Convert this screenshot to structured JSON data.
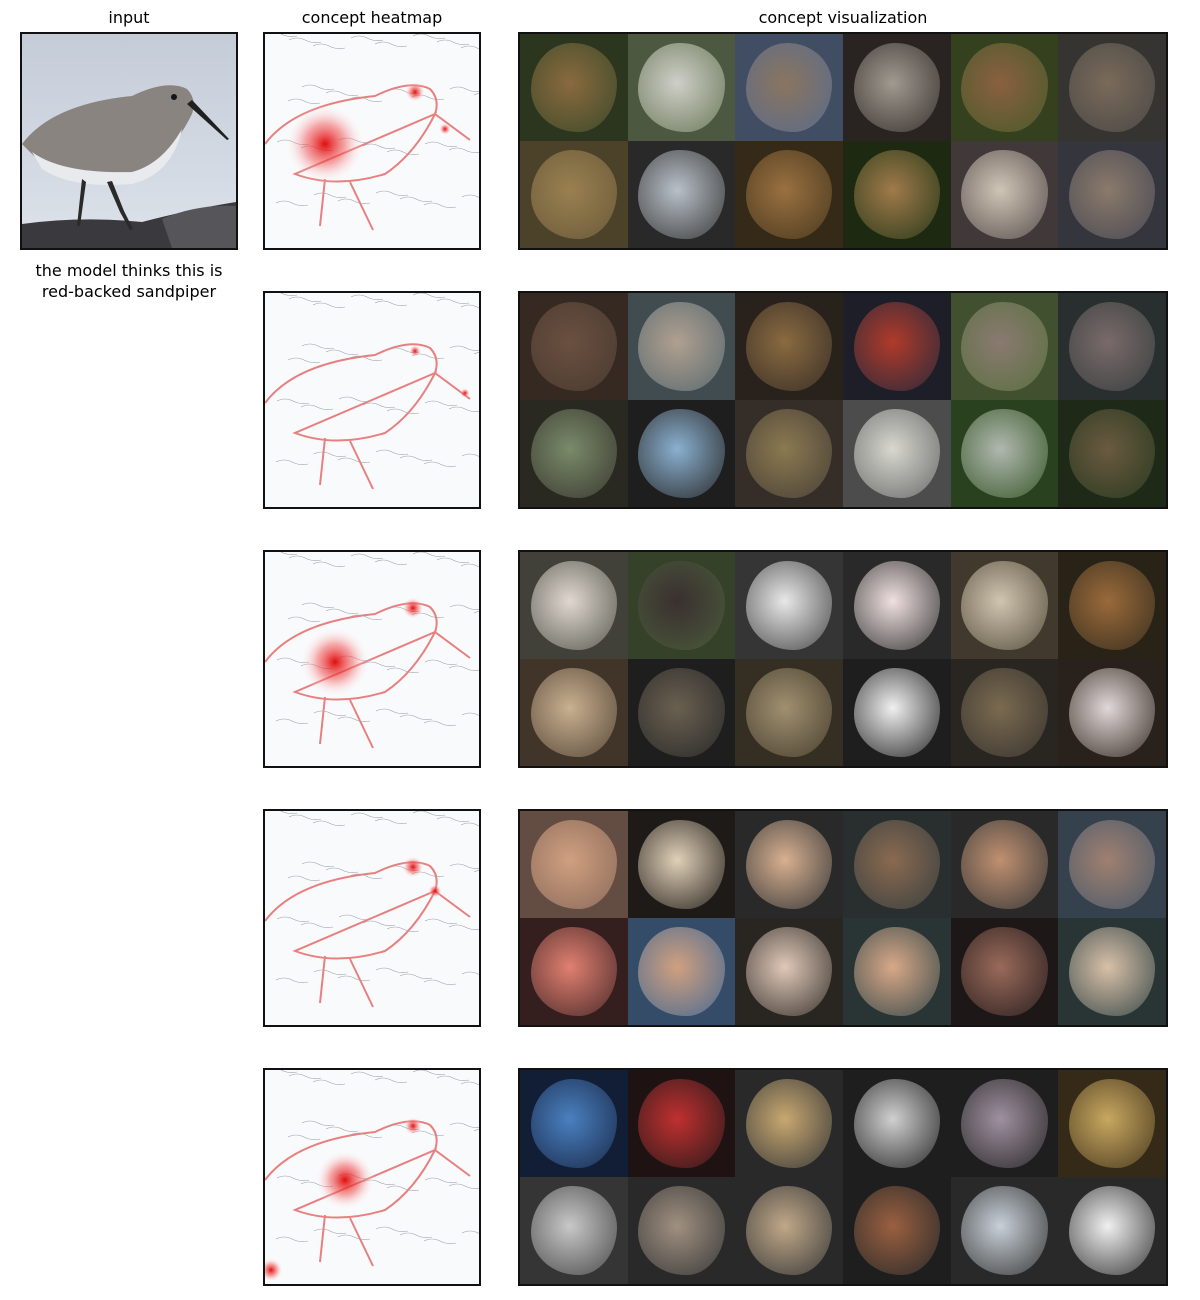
{
  "headers": {
    "input": "input",
    "heatmap": "concept heatmap",
    "visualization": "concept visualization"
  },
  "prediction": {
    "line1": "the model thinks this is",
    "line2": "red-backed sandpiper"
  },
  "concepts": [
    {
      "heat_focus": "head-body",
      "tiles": [
        {
          "bg": "#3d4a2a",
          "fg": "#8a6a3e"
        },
        {
          "bg": "#6b7a5a",
          "fg": "#cfcfc8"
        },
        {
          "bg": "#5a6b8a",
          "fg": "#8a7560"
        },
        {
          "bg": "#3a3330",
          "fg": "#a09a90"
        },
        {
          "bg": "#4a5a2a",
          "fg": "#8a6040"
        },
        {
          "bg": "#4a4845",
          "fg": "#7a6a5a"
        },
        {
          "bg": "#6a5a3a",
          "fg": "#9a8050"
        },
        {
          "bg": "#3a3a3a",
          "fg": "#b8c0c8"
        },
        {
          "bg": "#4a3a20",
          "fg": "#9a7040"
        },
        {
          "bg": "#2a3a1a",
          "fg": "#a07a4a"
        },
        {
          "bg": "#5a5050",
          "fg": "#cfc5b5"
        },
        {
          "bg": "#4a4a55",
          "fg": "#8a7a6a"
        }
      ]
    },
    {
      "heat_focus": "beak",
      "tiles": [
        {
          "bg": "#4a3a30",
          "fg": "#6a5040"
        },
        {
          "bg": "#5a6a70",
          "fg": "#b0a090"
        },
        {
          "bg": "#3a3028",
          "fg": "#8a6a40"
        },
        {
          "bg": "#2a2a3a",
          "fg": "#b03a2a"
        },
        {
          "bg": "#5a7040",
          "fg": "#8a7a70"
        },
        {
          "bg": "#3a4040",
          "fg": "#7a6a6a"
        },
        {
          "bg": "#3a3a30",
          "fg": "#7a8a6a"
        },
        {
          "bg": "#2a2a2a",
          "fg": "#8ab0d0"
        },
        {
          "bg": "#4a4038",
          "fg": "#8a7a50"
        },
        {
          "bg": "#6a6a6a",
          "fg": "#d8d8d0"
        },
        {
          "bg": "#3a5a2a",
          "fg": "#b0b8b0"
        },
        {
          "bg": "#2a3a20",
          "fg": "#6a5a40"
        }
      ]
    },
    {
      "heat_focus": "eye",
      "tiles": [
        {
          "bg": "#5a5a50",
          "fg": "#e0d8d0"
        },
        {
          "bg": "#4a5a3a",
          "fg": "#3a3030"
        },
        {
          "bg": "#4a4a4a",
          "fg": "#e8e8e8"
        },
        {
          "bg": "#3a3a3a",
          "fg": "#f0e0e0"
        },
        {
          "bg": "#5a5040",
          "fg": "#cfc5b0"
        },
        {
          "bg": "#3a3020",
          "fg": "#9a6a3a"
        },
        {
          "bg": "#5a4a3a",
          "fg": "#c8b090"
        },
        {
          "bg": "#2a2a2a",
          "fg": "#6a6050"
        },
        {
          "bg": "#4a4030",
          "fg": "#a09070"
        },
        {
          "bg": "#2a2a2a",
          "fg": "#f0f0f0"
        },
        {
          "bg": "#3a3530",
          "fg": "#7a6a50"
        },
        {
          "bg": "#3a3028",
          "fg": "#e0d8d8"
        }
      ]
    },
    {
      "heat_focus": "eye-beak",
      "tiles": [
        {
          "bg": "#8a6a5a",
          "fg": "#d0a080"
        },
        {
          "bg": "#2a2520",
          "fg": "#e0d0b8"
        },
        {
          "bg": "#3a3a3a",
          "fg": "#d8b090"
        },
        {
          "bg": "#3a4040",
          "fg": "#8a6a50"
        },
        {
          "bg": "#3a3a3a",
          "fg": "#c09070"
        },
        {
          "bg": "#4a5a6a",
          "fg": "#a08070"
        },
        {
          "bg": "#4a2a2a",
          "fg": "#e08070"
        },
        {
          "bg": "#4a6a90",
          "fg": "#d0a080"
        },
        {
          "bg": "#3a3530",
          "fg": "#e0c8b8"
        },
        {
          "bg": "#3a4a4a",
          "fg": "#d8a888"
        },
        {
          "bg": "#2a2020",
          "fg": "#9a6a5a"
        },
        {
          "bg": "#3a4a4a",
          "fg": "#d8c0a8"
        }
      ]
    },
    {
      "heat_focus": "head-corner",
      "tiles": [
        {
          "bg": "#1a2a4a",
          "fg": "#4a80c0"
        },
        {
          "bg": "#2a1a1a",
          "fg": "#c03030"
        },
        {
          "bg": "#3a3a3a",
          "fg": "#c8a870"
        },
        {
          "bg": "#2a2a2a",
          "fg": "#d0d0d0"
        },
        {
          "bg": "#2a2a2a",
          "fg": "#a090a0"
        },
        {
          "bg": "#4a3a20",
          "fg": "#c8a860"
        },
        {
          "bg": "#4a4a4a",
          "fg": "#c8c8c8"
        },
        {
          "bg": "#3a3a3a",
          "fg": "#a09080"
        },
        {
          "bg": "#3a3a3a",
          "fg": "#c0a888"
        },
        {
          "bg": "#2a2a2a",
          "fg": "#9a6040"
        },
        {
          "bg": "#3a3a3a",
          "fg": "#c8d0d8"
        },
        {
          "bg": "#3a3a3a",
          "fg": "#f0f0f0"
        }
      ]
    }
  ]
}
